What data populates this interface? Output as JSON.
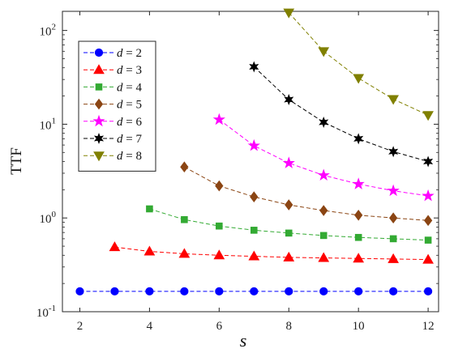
{
  "chart_data": {
    "type": "line",
    "xlabel": "s",
    "ylabel": "TTF",
    "yscale": "log",
    "xlim": [
      1.5,
      12.3
    ],
    "ylim": [
      0.1,
      160
    ],
    "xticks": [
      2,
      4,
      6,
      8,
      10,
      12
    ],
    "yticks": [
      {
        "value": 0.1,
        "base": "10",
        "exp": "-1"
      },
      {
        "value": 1,
        "base": "10",
        "exp": "0"
      },
      {
        "value": 10,
        "base": "10",
        "exp": "1"
      },
      {
        "value": 100,
        "base": "10",
        "exp": "2"
      }
    ],
    "grid": false,
    "legend_position": "top-left",
    "series": [
      {
        "name": "d = 2",
        "color": "#0000ff",
        "marker": "circle",
        "x": [
          2,
          3,
          4,
          5,
          6,
          7,
          8,
          9,
          10,
          11,
          12
        ],
        "y": [
          0.165,
          0.165,
          0.165,
          0.165,
          0.165,
          0.165,
          0.165,
          0.165,
          0.165,
          0.165,
          0.165
        ]
      },
      {
        "name": "d = 3",
        "color": "#ff0000",
        "marker": "triangle-up",
        "x": [
          3,
          4,
          5,
          6,
          7,
          8,
          9,
          10,
          11,
          12
        ],
        "y": [
          0.49,
          0.44,
          0.415,
          0.4,
          0.39,
          0.38,
          0.375,
          0.37,
          0.365,
          0.36
        ]
      },
      {
        "name": "d = 4",
        "color": "#33aa33",
        "marker": "square",
        "x": [
          4,
          5,
          6,
          7,
          8,
          9,
          10,
          11,
          12
        ],
        "y": [
          1.25,
          0.96,
          0.82,
          0.74,
          0.69,
          0.65,
          0.62,
          0.6,
          0.58
        ]
      },
      {
        "name": "d = 5",
        "color": "#8b4513",
        "marker": "diamond",
        "x": [
          5,
          6,
          7,
          8,
          9,
          10,
          11,
          12
        ],
        "y": [
          3.5,
          2.2,
          1.68,
          1.38,
          1.2,
          1.07,
          1.0,
          0.94
        ]
      },
      {
        "name": "d = 6",
        "color": "#ff00ff",
        "marker": "star",
        "x": [
          6,
          7,
          8,
          9,
          10,
          11,
          12
        ],
        "y": [
          11.2,
          5.9,
          3.85,
          2.85,
          2.3,
          1.95,
          1.72
        ]
      },
      {
        "name": "d = 7",
        "color": "#000000",
        "marker": "hexagram",
        "x": [
          7,
          8,
          9,
          10,
          11,
          12
        ],
        "y": [
          41,
          18.3,
          10.5,
          7.0,
          5.1,
          4.0
        ]
      },
      {
        "name": "d = 8",
        "color": "#808000",
        "marker": "triangle-down",
        "x": [
          8,
          9,
          10,
          11,
          12
        ],
        "y": [
          155,
          60,
          31,
          18.5,
          12.5
        ]
      }
    ]
  }
}
